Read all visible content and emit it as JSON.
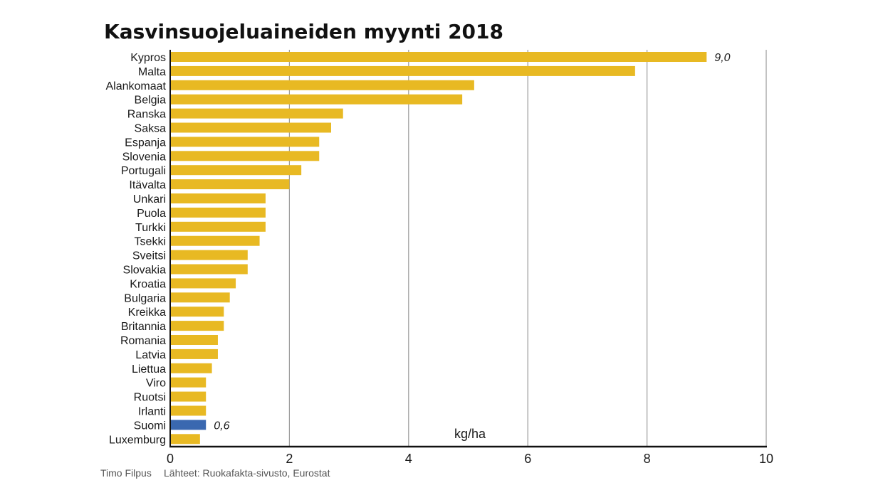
{
  "chart_data": {
    "type": "bar",
    "orientation": "horizontal",
    "title": "Kasvinsuojeluaineiden myynti 2018",
    "unit_label": "kg/ha",
    "xlim": [
      0,
      10
    ],
    "ticks": [
      0,
      2,
      4,
      6,
      8,
      10
    ],
    "grid": true,
    "categories": [
      "Kypros",
      "Malta",
      "Alankomaat",
      "Belgia",
      "Ranska",
      "Saksa",
      "Espanja",
      "Slovenia",
      "Portugali",
      "Itävalta",
      "Unkari",
      "Puola",
      "Turkki",
      "Tsekki",
      "Sveitsi",
      "Slovakia",
      "Kroatia",
      "Bulgaria",
      "Kreikka",
      "Britannia",
      "Romania",
      "Latvia",
      "Liettua",
      "Viro",
      "Ruotsi",
      "Irlanti",
      "Suomi",
      "Luxemburg"
    ],
    "values": [
      9.0,
      7.8,
      5.1,
      4.9,
      2.9,
      2.7,
      2.5,
      2.5,
      2.2,
      2.0,
      1.6,
      1.6,
      1.6,
      1.5,
      1.3,
      1.3,
      1.1,
      1.0,
      0.9,
      0.9,
      0.8,
      0.8,
      0.7,
      0.6,
      0.6,
      0.6,
      0.6,
      0.5
    ],
    "highlight": "Suomi",
    "colors": {
      "bar": "#e8b923",
      "highlight": "#3a68b0",
      "grid": "#9a9a9a",
      "axis": "#111111"
    },
    "data_labels": [
      {
        "category": "Kypros",
        "text": "9,0"
      },
      {
        "category": "Suomi",
        "text": "0,6"
      }
    ]
  },
  "footer": {
    "author": "Timo Filpus",
    "sources": "Lähteet: Ruokafakta-sivusto, Eurostat"
  }
}
